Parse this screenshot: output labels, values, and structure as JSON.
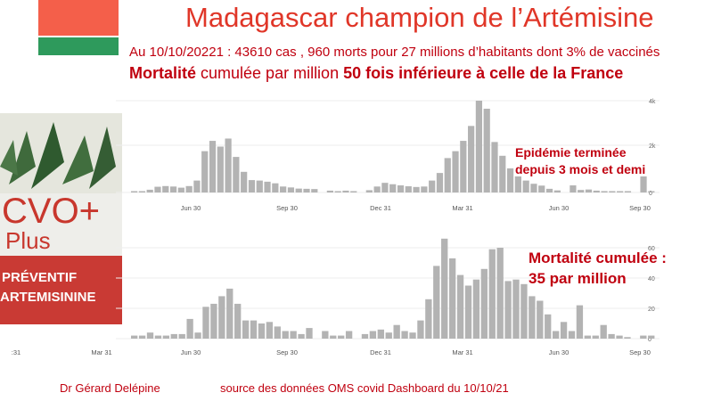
{
  "header": {
    "title": "Madagascar champion de l’Artémisine",
    "subtitle": "Au 10/10/20221 : 43610 cas , 960 morts pour 27 millions d’habitants dont 3% de vaccinés",
    "line2_bold1": "Mortalité",
    "line2_mid": " cumulée par million ",
    "line2_bold2": "50 fois inférieure à celle de la France"
  },
  "flag": {
    "top_color": "#f45f4a",
    "bottom_color": "#2e9a5c"
  },
  "product_box": {
    "brand": "CVO+",
    "plus": "Plus",
    "line1": "PRÉVENTIF",
    "line2": "ARTEMISININE"
  },
  "annotations": {
    "cases_line1": "Epidémie terminée",
    "cases_line2": "depuis 3 mois et demi",
    "deaths_line1": "Mortalité cumulée :",
    "deaths_line2": "35 par million"
  },
  "footer": {
    "author": "Dr Gérard Delépine",
    "source": "source des données OMS covid Dashboard du 10/10/21"
  },
  "colors": {
    "bars": "#b3b3b3",
    "accent": "#c0000f"
  },
  "chart_data": [
    {
      "type": "bar",
      "name": "weekly-cases",
      "x_tick_labels": [
        "Jun 30",
        "Sep 30",
        "Dec 31",
        "Mar 31",
        "Jun 30",
        "Sep 30"
      ],
      "y_tick_labels": [
        "0",
        "2k",
        "4k"
      ],
      "ylim": [
        0,
        4000
      ],
      "values": [
        20,
        40,
        120,
        250,
        280,
        260,
        210,
        280,
        520,
        1800,
        2250,
        2000,
        2350,
        1550,
        900,
        540,
        520,
        470,
        400,
        260,
        220,
        170,
        160,
        150,
        0,
        80,
        55,
        80,
        55,
        0,
        100,
        260,
        420,
        360,
        310,
        270,
        240,
        260,
        520,
        850,
        1500,
        1800,
        2250,
        2900,
        4000,
        3650,
        2200,
        1600,
        1050,
        700,
        520,
        380,
        300,
        160,
        90,
        0,
        310,
        110,
        130,
        80,
        60,
        45,
        45,
        30,
        0,
        700,
        30
      ]
    },
    {
      "type": "bar",
      "name": "weekly-deaths",
      "x_tick_labels": [
        ":31",
        "Mar 31",
        "Jun 30",
        "Sep 30",
        "Dec 31",
        "Mar 31",
        "Jun 30",
        "Sep 30"
      ],
      "y_tick_labels": [
        "0",
        "20",
        "40",
        "60"
      ],
      "ylim": [
        0,
        60
      ],
      "values": [
        2,
        2,
        4,
        2,
        2,
        3,
        3,
        13,
        4,
        21,
        23,
        28,
        33,
        23,
        12,
        12,
        10,
        11,
        8,
        5,
        5,
        3,
        7,
        0,
        5,
        2,
        2,
        5,
        0,
        3,
        5,
        6,
        4,
        9,
        5,
        4,
        12,
        26,
        48,
        66,
        53,
        42,
        35,
        39,
        46,
        59,
        60,
        38,
        39,
        36,
        28,
        25,
        16,
        5,
        11,
        5,
        22,
        2,
        2,
        9,
        3,
        2,
        1,
        0,
        2,
        2
      ]
    }
  ]
}
